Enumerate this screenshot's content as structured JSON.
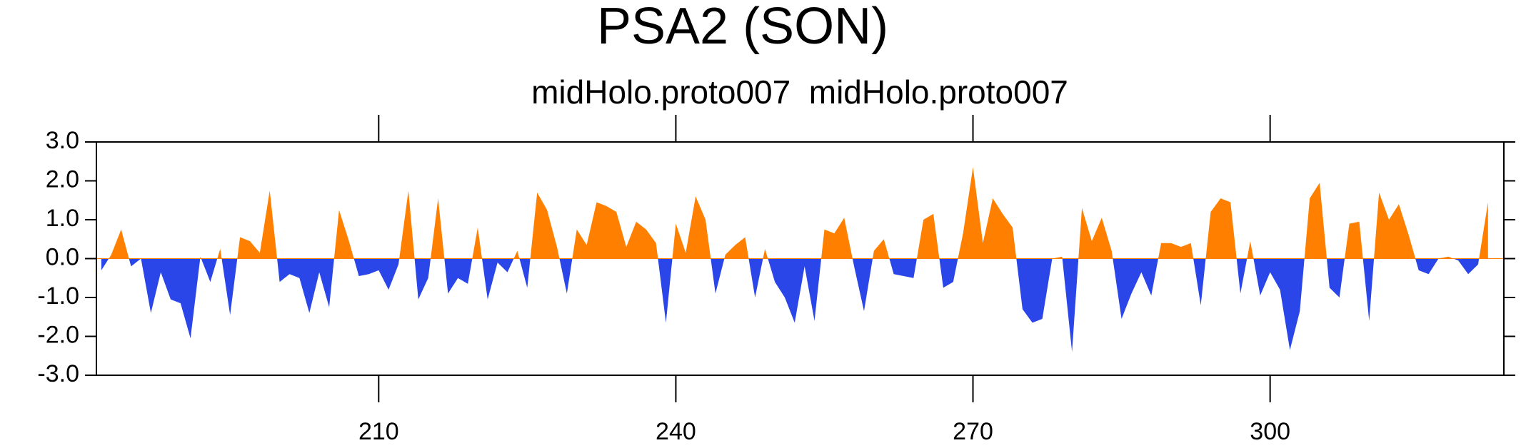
{
  "chart_data": {
    "type": "area",
    "title": "PSA2 (SON)",
    "subtitle": "midHolo.proto007  midHolo.proto007",
    "x": [
      182,
      183,
      184,
      185,
      186,
      187,
      188,
      189,
      190,
      191,
      192,
      193,
      194,
      195,
      196,
      197,
      198,
      199,
      200,
      201,
      202,
      203,
      204,
      205,
      206,
      207,
      208,
      209,
      210,
      211,
      212,
      213,
      214,
      215,
      216,
      217,
      218,
      219,
      220,
      221,
      222,
      223,
      224,
      225,
      226,
      227,
      228,
      229,
      230,
      231,
      232,
      233,
      234,
      235,
      236,
      237,
      238,
      239,
      240,
      241,
      242,
      243,
      244,
      245,
      246,
      247,
      248,
      249,
      250,
      251,
      252,
      253,
      254,
      255,
      256,
      257,
      258,
      259,
      260,
      261,
      262,
      263,
      264,
      265,
      266,
      267,
      268,
      269,
      270,
      271,
      272,
      273,
      274,
      275,
      276,
      277,
      278,
      279,
      280,
      281,
      282,
      283,
      284,
      285,
      286,
      287,
      288,
      289,
      290,
      291,
      292,
      293,
      294,
      295,
      296,
      297,
      298,
      299,
      300,
      301,
      302,
      303,
      304,
      305,
      306,
      307,
      308,
      309,
      310,
      311,
      312,
      313,
      314,
      315,
      316,
      317,
      318,
      319,
      320,
      321,
      322
    ],
    "values": [
      -0.3,
      0.1,
      0.75,
      -0.2,
      0.0,
      -1.4,
      -0.35,
      -1.05,
      -1.15,
      -2.05,
      0.05,
      -0.6,
      0.25,
      -1.45,
      0.55,
      0.45,
      0.15,
      1.75,
      -0.6,
      -0.4,
      -0.5,
      -1.4,
      -0.35,
      -1.25,
      1.25,
      0.45,
      -0.45,
      -0.4,
      -0.3,
      -0.8,
      -0.15,
      1.75,
      -1.05,
      -0.5,
      1.55,
      -0.9,
      -0.5,
      -0.65,
      0.8,
      -1.05,
      -0.1,
      -0.35,
      0.2,
      -0.75,
      1.7,
      1.25,
      0.3,
      -0.9,
      0.75,
      0.35,
      1.45,
      1.35,
      1.2,
      0.3,
      0.95,
      0.75,
      0.4,
      -1.65,
      0.9,
      0.15,
      1.6,
      1.0,
      -0.9,
      0.1,
      0.35,
      0.55,
      -1.0,
      0.25,
      -0.6,
      -1.0,
      -1.65,
      -0.2,
      -1.6,
      0.75,
      0.65,
      1.05,
      -0.2,
      -1.35,
      0.2,
      0.5,
      -0.4,
      -0.45,
      -0.5,
      1.0,
      1.15,
      -0.75,
      -0.6,
      0.65,
      2.35,
      0.4,
      1.55,
      1.15,
      0.8,
      -1.3,
      -1.65,
      -1.55,
      0.0,
      0.05,
      -2.4,
      1.3,
      0.45,
      1.05,
      0.2,
      -1.55,
      -0.9,
      -0.35,
      -0.95,
      0.4,
      0.4,
      0.3,
      0.4,
      -1.2,
      1.2,
      1.55,
      1.45,
      -0.9,
      0.45,
      -0.95,
      -0.35,
      -0.8,
      -2.35,
      -1.35,
      1.55,
      1.95,
      -0.75,
      -1.0,
      0.9,
      0.95,
      -1.6,
      1.7,
      1.0,
      1.4,
      0.6,
      -0.3,
      -0.4,
      0.0,
      0.05,
      -0.05,
      -0.4,
      -0.15,
      1.45
    ],
    "positive_color": "#ff8000",
    "negative_color": "#2a45e8",
    "xlim": [
      181.5,
      323.6
    ],
    "ylim": [
      -3,
      3
    ],
    "xticks": [
      210,
      240,
      270,
      300
    ],
    "yticks": [
      {
        "value": -3,
        "label": "-3.0"
      },
      {
        "value": -2,
        "label": "-2.0"
      },
      {
        "value": -1,
        "label": "-1.0"
      },
      {
        "value": 0,
        "label": "0.0"
      },
      {
        "value": 1,
        "label": "1.0"
      },
      {
        "value": 2,
        "label": "2.0"
      },
      {
        "value": 3,
        "label": "3.0"
      }
    ]
  }
}
